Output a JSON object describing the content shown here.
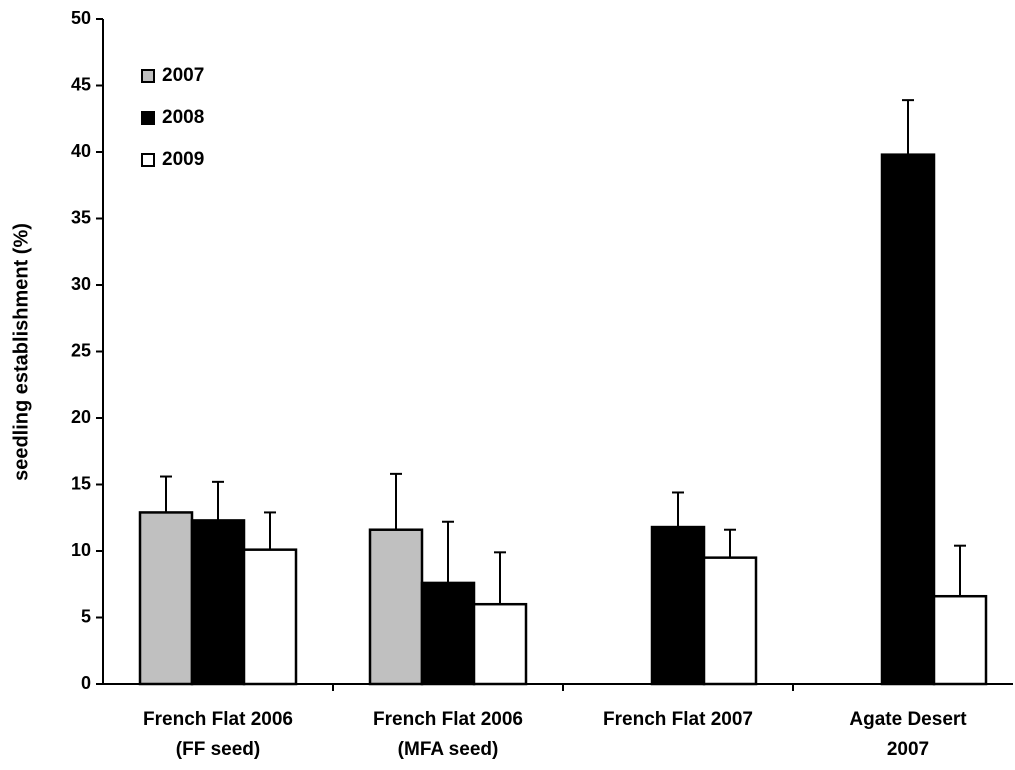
{
  "chart_data": {
    "type": "bar",
    "y_label": "seedling establishment (%)",
    "categories": [
      "French Flat 2006\n(FF seed)",
      "French Flat 2006\n(MFA seed)",
      "French Flat 2007",
      "Agate Desert\n2007"
    ],
    "series": [
      {
        "name": "2007",
        "color": "#c0c0c0",
        "values": [
          12.9,
          11.6,
          null,
          null
        ],
        "errors": [
          2.7,
          4.2,
          null,
          null
        ]
      },
      {
        "name": "2008",
        "color": "#000000",
        "values": [
          12.3,
          7.6,
          11.8,
          39.8
        ],
        "errors": [
          2.9,
          4.6,
          2.6,
          4.1
        ]
      },
      {
        "name": "2009",
        "color": "#ffffff",
        "values": [
          10.1,
          6.0,
          9.5,
          6.6
        ],
        "errors": [
          2.8,
          3.9,
          2.1,
          3.8
        ]
      }
    ],
    "ylim": [
      0,
      50
    ],
    "yticks": [
      0,
      5,
      10,
      15,
      20,
      25,
      30,
      35,
      40,
      45,
      50
    ],
    "legend": "upper left",
    "grid": false
  }
}
